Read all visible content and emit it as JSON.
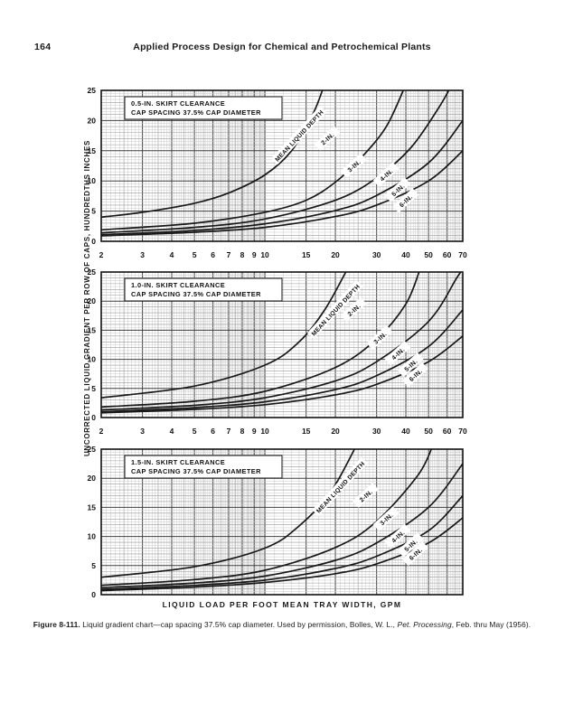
{
  "page": {
    "number": "164",
    "header_title": "Applied Process Design for Chemical and Petrochemical Plants"
  },
  "figure": {
    "y_axis_label": "UNCORRECTED LIQUID GRADIENT PER ROW OF CAPS, HUNDREDTHS INCHES",
    "x_axis_label": "LIQUID LOAD PER FOOT MEAN TRAY WIDTH, GPM",
    "caption_prefix": "Figure 8-111.",
    "caption_body": " Liquid gradient chart—cap spacing 37.5% cap diameter. Used by permission, Bolles, W. L., ",
    "caption_italic": "Pet. Processing",
    "caption_suffix": ", Feb. thru May (1956)."
  },
  "chart_data": [
    {
      "type": "line",
      "title_line1": "0.5-IN. SKIRT CLEARANCE",
      "title_line2": "CAP SPACING 37.5% CAP DIAMETER",
      "x_scale": "log",
      "xlim": [
        2,
        70
      ],
      "ylim": [
        0,
        25
      ],
      "x_ticks": [
        2,
        3,
        4,
        5,
        6,
        7,
        8,
        9,
        10,
        15,
        20,
        30,
        40,
        50,
        60,
        70
      ],
      "y_ticks": [
        0,
        5,
        10,
        15,
        20,
        25
      ],
      "show_x_tick_labels": true,
      "grid": true,
      "annotation": {
        "text": "MEAN LIQUID DEPTH",
        "x": 14,
        "y": 17.5
      },
      "series": [
        {
          "name": "2-IN.",
          "label_pos": {
            "x": 18.5,
            "y": 17
          },
          "points": [
            [
              2,
              4
            ],
            [
              3,
              4.8
            ],
            [
              5,
              6.3
            ],
            [
              7,
              8
            ],
            [
              10,
              11
            ],
            [
              13,
              15
            ],
            [
              16,
              21
            ],
            [
              17.8,
              25.5
            ]
          ]
        },
        {
          "name": "3-IN.",
          "label_pos": {
            "x": 24,
            "y": 12.5
          },
          "points": [
            [
              2,
              1.9
            ],
            [
              5,
              3
            ],
            [
              10,
              4.8
            ],
            [
              15,
              6.8
            ],
            [
              20,
              9.8
            ],
            [
              26,
              14
            ],
            [
              33,
              19
            ],
            [
              39.5,
              25.5
            ]
          ]
        },
        {
          "name": "4-IN.",
          "label_pos": {
            "x": 33,
            "y": 11
          },
          "points": [
            [
              2,
              1.4
            ],
            [
              5,
              2.3
            ],
            [
              10,
              3.7
            ],
            [
              20,
              6.8
            ],
            [
              30,
              10.5
            ],
            [
              42,
              15.5
            ],
            [
              55,
              22
            ],
            [
              62,
              25.5
            ]
          ]
        },
        {
          "name": "5-IN.",
          "label_pos": {
            "x": 37,
            "y": 8.5
          },
          "points": [
            [
              2,
              1.1
            ],
            [
              5,
              1.8
            ],
            [
              10,
              2.9
            ],
            [
              20,
              5.1
            ],
            [
              30,
              7.6
            ],
            [
              50,
              13
            ],
            [
              70,
              20
            ]
          ]
        },
        {
          "name": "6-IN.",
          "label_pos": {
            "x": 40,
            "y": 6.7
          },
          "points": [
            [
              2,
              0.9
            ],
            [
              5,
              1.5
            ],
            [
              10,
              2.3
            ],
            [
              20,
              4.1
            ],
            [
              30,
              6
            ],
            [
              50,
              10
            ],
            [
              70,
              15
            ]
          ]
        }
      ]
    },
    {
      "type": "line",
      "title_line1": "1.0-IN. SKIRT CLEARANCE",
      "title_line2": "CAP SPACING 37.5% CAP DIAMETER",
      "x_scale": "log",
      "xlim": [
        2,
        70
      ],
      "ylim": [
        0,
        25
      ],
      "x_ticks": [
        2,
        3,
        4,
        5,
        6,
        7,
        8,
        9,
        10,
        15,
        20,
        30,
        40,
        50,
        60,
        70
      ],
      "y_ticks": [
        0,
        5,
        10,
        15,
        20,
        25
      ],
      "show_x_tick_labels": true,
      "grid": true,
      "annotation": {
        "text": "MEAN LIQUID DEPTH",
        "x": 20,
        "y": 18.5
      },
      "series": [
        {
          "name": "2-IN.",
          "label_pos": {
            "x": 24,
            "y": 18.5
          },
          "points": [
            [
              2,
              3.4
            ],
            [
              5,
              5.4
            ],
            [
              10,
              9
            ],
            [
              14,
              13
            ],
            [
              18,
              18.5
            ],
            [
              22.5,
              25.5
            ]
          ]
        },
        {
          "name": "3-IN.",
          "label_pos": {
            "x": 31,
            "y": 13.7
          },
          "points": [
            [
              2,
              1.8
            ],
            [
              5,
              2.8
            ],
            [
              10,
              4.5
            ],
            [
              20,
              8.6
            ],
            [
              30,
              13.5
            ],
            [
              40,
              19.5
            ],
            [
              46,
              25.5
            ]
          ]
        },
        {
          "name": "4-IN.",
          "label_pos": {
            "x": 37,
            "y": 11
          },
          "points": [
            [
              2,
              1.3
            ],
            [
              5,
              2.1
            ],
            [
              10,
              3.4
            ],
            [
              20,
              6.3
            ],
            [
              30,
              9.6
            ],
            [
              50,
              16.5
            ],
            [
              66,
              24
            ],
            [
              70,
              25.5
            ]
          ]
        },
        {
          "name": "5-IN.",
          "label_pos": {
            "x": 42,
            "y": 9
          },
          "points": [
            [
              2,
              1
            ],
            [
              5,
              1.7
            ],
            [
              10,
              2.7
            ],
            [
              20,
              4.8
            ],
            [
              30,
              7.2
            ],
            [
              50,
              12.2
            ],
            [
              70,
              18.5
            ]
          ]
        },
        {
          "name": "6-IN.",
          "label_pos": {
            "x": 44,
            "y": 7.3
          },
          "points": [
            [
              2,
              0.8
            ],
            [
              5,
              1.4
            ],
            [
              10,
              2.2
            ],
            [
              20,
              3.9
            ],
            [
              30,
              5.7
            ],
            [
              50,
              9.6
            ],
            [
              70,
              14
            ]
          ]
        }
      ]
    },
    {
      "type": "line",
      "title_line1": "1.5-IN. SKIRT CLEARANCE",
      "title_line2": "CAP SPACING 37.5% CAP DIAMETER",
      "x_scale": "log",
      "xlim": [
        2,
        70
      ],
      "ylim": [
        0,
        25
      ],
      "x_ticks": [
        2,
        3,
        4,
        5,
        6,
        7,
        8,
        9,
        10,
        15,
        20,
        30,
        40,
        50,
        60,
        70
      ],
      "y_ticks": [
        0,
        5,
        10,
        15,
        20,
        25
      ],
      "show_x_tick_labels": false,
      "grid": true,
      "annotation": {
        "text": "MEAN LIQUID DEPTH",
        "x": 21,
        "y": 18.5
      },
      "series": [
        {
          "name": "2-IN.",
          "label_pos": {
            "x": 27,
            "y": 17
          },
          "points": [
            [
              2,
              3
            ],
            [
              5,
              4.8
            ],
            [
              10,
              8
            ],
            [
              14,
              11.8
            ],
            [
              19,
              17.5
            ],
            [
              24.5,
              25.5
            ]
          ]
        },
        {
          "name": "3-IN.",
          "label_pos": {
            "x": 33,
            "y": 13
          },
          "points": [
            [
              2,
              1.6
            ],
            [
              5,
              2.6
            ],
            [
              10,
              4.2
            ],
            [
              20,
              8.1
            ],
            [
              30,
              12.6
            ],
            [
              45,
              20.5
            ],
            [
              52,
              25.5
            ]
          ]
        },
        {
          "name": "4-IN.",
          "label_pos": {
            "x": 37,
            "y": 10
          },
          "points": [
            [
              2,
              1.2
            ],
            [
              5,
              2
            ],
            [
              10,
              3.2
            ],
            [
              20,
              5.9
            ],
            [
              30,
              8.9
            ],
            [
              50,
              15
            ],
            [
              70,
              22.5
            ]
          ]
        },
        {
          "name": "5-IN.",
          "label_pos": {
            "x": 42,
            "y": 8.5
          },
          "points": [
            [
              2,
              0.9
            ],
            [
              5,
              1.6
            ],
            [
              10,
              2.5
            ],
            [
              20,
              4.5
            ],
            [
              30,
              6.6
            ],
            [
              50,
              11
            ],
            [
              70,
              17
            ]
          ]
        },
        {
          "name": "6-IN.",
          "label_pos": {
            "x": 44,
            "y": 7
          },
          "points": [
            [
              2,
              0.7
            ],
            [
              5,
              1.3
            ],
            [
              10,
              2.1
            ],
            [
              20,
              3.6
            ],
            [
              30,
              5.3
            ],
            [
              50,
              8.9
            ],
            [
              70,
              13.2
            ]
          ]
        }
      ]
    }
  ]
}
